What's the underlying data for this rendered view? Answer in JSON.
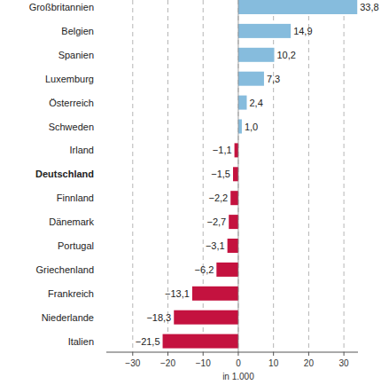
{
  "chart_data": {
    "type": "bar",
    "orientation": "horizontal",
    "x_label": "in 1.000",
    "categories": [
      "Großbritannien",
      "Belgien",
      "Spanien",
      "Luxemburg",
      "Österreich",
      "Schweden",
      "Irland",
      "Deutschland",
      "Finnland",
      "Dänemark",
      "Portugal",
      "Griechenland",
      "Frankreich",
      "Niederlande",
      "Italien"
    ],
    "values": [
      33.8,
      14.9,
      10.2,
      7.3,
      2.4,
      1.0,
      -1.1,
      -1.5,
      -2.2,
      -2.7,
      -3.1,
      -6.2,
      -13.1,
      -18.3,
      -21.5
    ],
    "value_labels": [
      "33,8",
      "14,9",
      "10,2",
      "7,3",
      "2,4",
      "1,0",
      "−1,1",
      "−1,5",
      "−2,2",
      "−2,7",
      "−3,1",
      "−6,2",
      "−13,1",
      "−18,3",
      "−21,5"
    ],
    "colors": [
      "#86bcdd",
      "#86bcdd",
      "#86bcdd",
      "#86bcdd",
      "#86bcdd",
      "#86bcdd",
      "#c4123f",
      "#c4123f",
      "#c4123f",
      "#c4123f",
      "#c4123f",
      "#c4123f",
      "#c4123f",
      "#c4123f",
      "#c4123f"
    ],
    "xlim": [
      -37.5,
      34
    ],
    "xticks": [
      {
        "value": -30,
        "label": "−30"
      },
      {
        "value": -20,
        "label": "−20"
      },
      {
        "value": -10,
        "label": "−10"
      },
      0,
      10,
      20,
      30
    ],
    "grid": true,
    "data_labels": true
  }
}
